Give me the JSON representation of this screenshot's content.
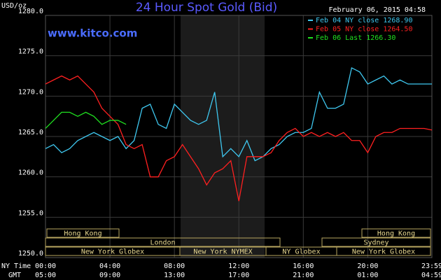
{
  "chart_data": {
    "type": "line",
    "title": "24 Hour Spot Gold (Bid)",
    "website": "www.kitco.com",
    "y_unit": "USD/oz",
    "timestamp": "February 06, 2015 04:58",
    "x_row_labels": [
      "NY Time",
      "GMT"
    ],
    "x": [
      0,
      0.5,
      1,
      1.5,
      2,
      2.5,
      3,
      3.5,
      4,
      4.5,
      5,
      5.5,
      6,
      6.5,
      7,
      7.5,
      8,
      8.5,
      9,
      9.5,
      10,
      10.5,
      11,
      11.5,
      12,
      12.5,
      13,
      13.5,
      14,
      14.5,
      15,
      15.5,
      16,
      16.5,
      17,
      17.5,
      18,
      18.5,
      19,
      19.5,
      20,
      20.5,
      21,
      21.5,
      22,
      22.5,
      23,
      23.5,
      23.98
    ],
    "xlim": [
      0,
      23.98
    ],
    "xticks": [
      {
        "value": 0,
        "label": "00:00"
      },
      {
        "value": 4,
        "label": "04:00"
      },
      {
        "value": 8,
        "label": "08:00"
      },
      {
        "value": 12,
        "label": "12:00"
      },
      {
        "value": 16,
        "label": "16:00"
      },
      {
        "value": 20,
        "label": "20:00"
      },
      {
        "value": 23.98,
        "label": "23:59"
      }
    ],
    "gmt_labels": [
      "05:00",
      "09:00",
      "13:00",
      "17:00",
      "21:00",
      "01:00",
      "04:59"
    ],
    "ylim": [
      1250,
      1280
    ],
    "yticks": [
      {
        "value": 1250,
        "label": "1250.0"
      },
      {
        "value": 1255,
        "label": "1255.0"
      },
      {
        "value": 1260,
        "label": "1260.0"
      },
      {
        "value": 1265,
        "label": "1265.0"
      },
      {
        "value": 1270,
        "label": "1270.0"
      },
      {
        "value": 1275,
        "label": "1275.0"
      },
      {
        "value": 1280,
        "label": "1280.0"
      }
    ],
    "grid": true,
    "series": [
      {
        "name": "Feb 04 NY close 1268.90",
        "color": "#3fc8f0",
        "values": [
          1263.5,
          1264,
          1263,
          1263.5,
          1264.5,
          1265,
          1265.5,
          1265,
          1264.5,
          1265,
          1263.5,
          1264.5,
          1268.5,
          1269,
          1266.5,
          1266,
          1269,
          1268,
          1267,
          1266.5,
          1267,
          1270.5,
          1262.5,
          1263.5,
          1262.5,
          1264.5,
          1262,
          1262.5,
          1263.5,
          1264,
          1265,
          1265.5,
          1265.5,
          1266,
          1270.5,
          1268.5,
          1268.5,
          1269,
          1273.5,
          1273,
          1271.5,
          1272,
          1272.5,
          1271.5,
          1272,
          1271.5,
          1271.5,
          1271.5,
          1271.5
        ]
      },
      {
        "name": "Feb 05 NY close 1264.50",
        "color": "#ff2020",
        "values": [
          1271.5,
          1272,
          1272.5,
          1272,
          1272.5,
          1271.5,
          1270.5,
          1268.5,
          1267.5,
          1266.5,
          1264,
          1263.5,
          1264,
          1260,
          1260,
          1262,
          1262.5,
          1264,
          1262.5,
          1261,
          1259,
          1260.5,
          1261,
          1262,
          1257,
          1262.5,
          1262.5,
          1262.5,
          1263,
          1264.5,
          1265.5,
          1266,
          1265,
          1265.5,
          1265,
          1265.5,
          1265,
          1265.5,
          1264.5,
          1264.5,
          1263,
          1265,
          1265.5,
          1265.5,
          1266,
          1266,
          1266,
          1266,
          1265.8
        ]
      },
      {
        "name": "Feb 06 Last 1266.30",
        "color": "#20e020",
        "values": [
          1266,
          1267,
          1268,
          1268,
          1267.5,
          1268,
          1267.5,
          1266.5,
          1267,
          1267,
          1266.5,
          null,
          null,
          null,
          null,
          null,
          null,
          null,
          null,
          null,
          null,
          null,
          null,
          null,
          null,
          null,
          null,
          null,
          null,
          null,
          null,
          null,
          null,
          null,
          null,
          null,
          null,
          null,
          null,
          null,
          null,
          null,
          null,
          null,
          null,
          null,
          null,
          null,
          null
        ]
      }
    ],
    "sessions": [
      "Hong Kong",
      "London",
      "New York Globex",
      "New York NYMEX",
      "NY Globex",
      "Sydney",
      "New York Globex",
      "Hong Kong"
    ]
  }
}
